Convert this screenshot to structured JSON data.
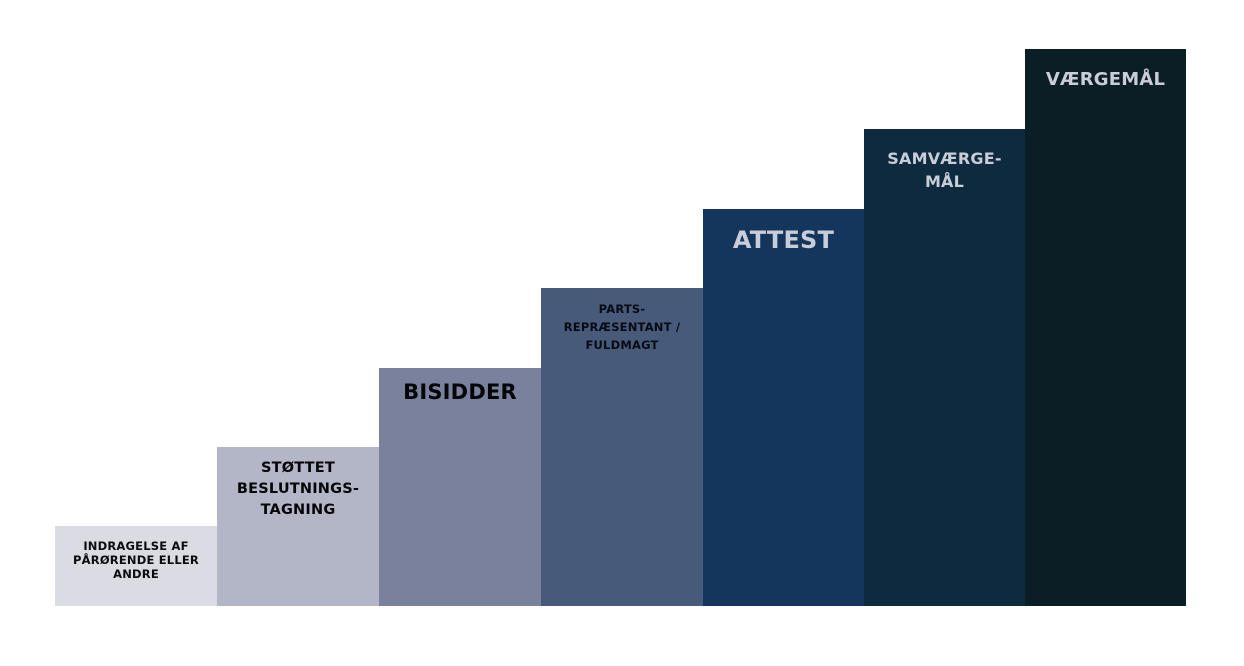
{
  "steps": [
    {
      "label": "INDRAGELSE AF\nPÅRØRENDE ELLER\nANDRE",
      "color": "#dbdce3",
      "text_color": "#0b0b12"
    },
    {
      "label": "STØTTET\nBESLUTNINGS-\nTAGNING",
      "color": "#b3b6c7",
      "text_color": "#050608"
    },
    {
      "label": "BISIDDER",
      "color": "#79819c",
      "text_color": "#050608"
    },
    {
      "label": "PARTS-\nREPRÆSENTANT /\nFULDMAGT",
      "color": "#485a79",
      "text_color": "#070a12"
    },
    {
      "label": "ATTEST",
      "color": "#15365c",
      "text_color": "#c8cdd8"
    },
    {
      "label": "SAMVÆRGE-\nMÅL",
      "color": "#0e2a3f",
      "text_color": "#c8cdd8"
    },
    {
      "label": "VÆRGEMÅL",
      "color": "#0b1e26",
      "text_color": "#c8cdd8"
    }
  ]
}
